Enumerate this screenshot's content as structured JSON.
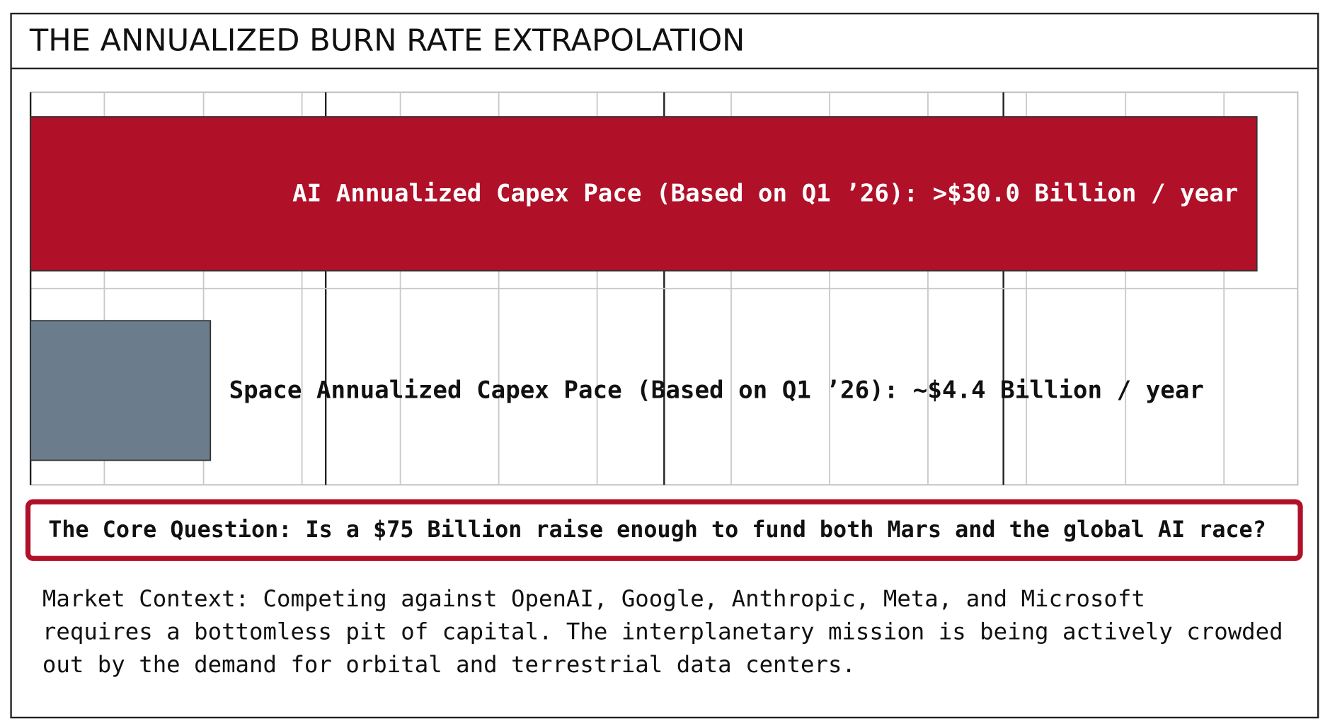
{
  "header": {
    "title": "THE ANNUALIZED BURN RATE EXTRAPOLATION"
  },
  "chart_data": {
    "type": "bar",
    "orientation": "horizontal",
    "values": [
      30.0,
      4.4
    ],
    "value_labels": [
      "AI Annualized Capex Pace (Based on Q1 ’26): >$30.0 Billion / year",
      "Space Annualized Capex Pace (Based on Q1 ’26): ~$4.4 Billion / year"
    ],
    "colors": [
      "#b01028",
      "#6b7d8c"
    ],
    "xlim": [
      0,
      31
    ],
    "grid": true
  },
  "callout": "The Core Question: Is a $75 Billion raise enough to fund both Mars and the global AI race?",
  "context": [
    "Market Context: Competing against OpenAI, Google, Anthropic, Meta, and Microsoft",
    "requires a bottomless pit of capital. The interplanetary mission is being actively crowded",
    "out by the demand for orbital and terrestrial data centers."
  ]
}
